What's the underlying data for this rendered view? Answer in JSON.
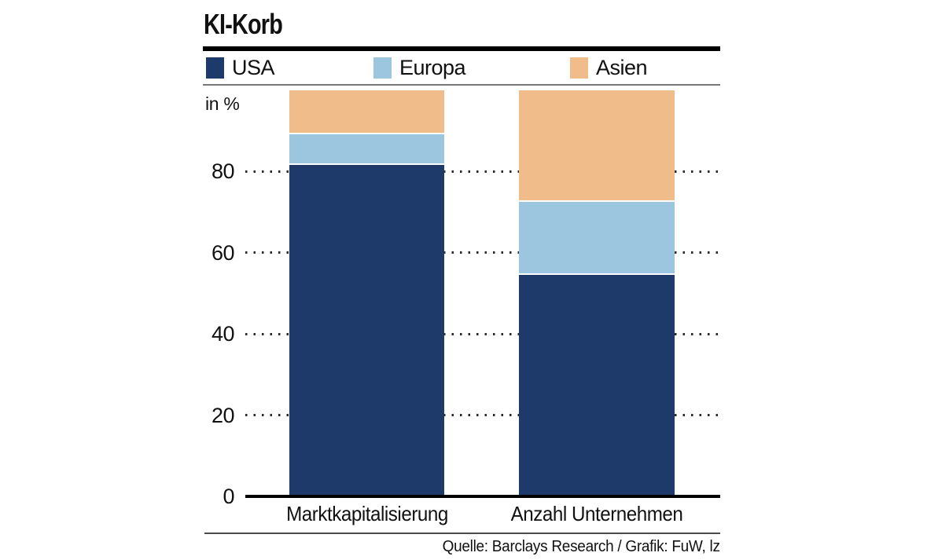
{
  "title": "KI-Korb",
  "unit_label": "in %",
  "legend": [
    {
      "label": "USA",
      "color": "#1d3a6b"
    },
    {
      "label": "Europa",
      "color": "#9cc5df"
    },
    {
      "label": "Asien",
      "color": "#f0bd8a"
    }
  ],
  "source": "Quelle: Barclays Research / Grafik: FuW, lz",
  "chart_data": {
    "type": "bar",
    "stacked": true,
    "title": "KI-Korb",
    "ylabel": "in %",
    "ylim": [
      0,
      100
    ],
    "yticks": [
      0,
      20,
      40,
      60,
      80
    ],
    "grid": "dotted horizontal",
    "legend_position": "top",
    "categories": [
      "Marktkapitalisierung",
      "Anzahl Unternehmen"
    ],
    "series": [
      {
        "name": "USA",
        "color": "#1d3a6b",
        "values": [
          82,
          55
        ]
      },
      {
        "name": "Europa",
        "color": "#9cc5df",
        "values": [
          7.5,
          18
        ]
      },
      {
        "name": "Asien",
        "color": "#f0bd8a",
        "values": [
          10.5,
          27
        ]
      }
    ]
  }
}
